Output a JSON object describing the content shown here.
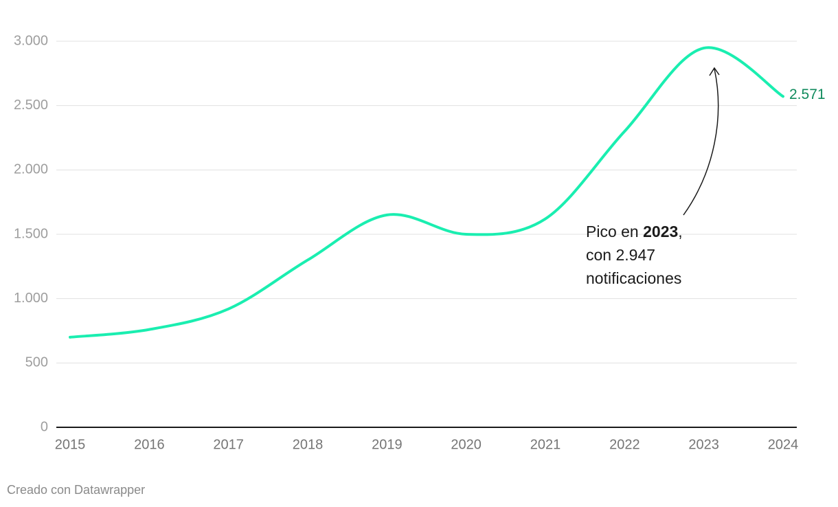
{
  "chart_data": {
    "type": "line",
    "x": [
      2015,
      2016,
      2017,
      2018,
      2019,
      2020,
      2021,
      2022,
      2023,
      2024
    ],
    "series": [
      {
        "color": "#1aeeb0",
        "label_color": "#0f8a5c",
        "values": [
          700,
          760,
          920,
          1300,
          1650,
          1500,
          1620,
          2300,
          2947,
          2571
        ],
        "value_labels": [
          null,
          null,
          null,
          null,
          null,
          null,
          null,
          null,
          null,
          "2.571"
        ]
      }
    ],
    "xlim": [
      2015,
      2024
    ],
    "xticks": [
      2015,
      2016,
      2017,
      2018,
      2019,
      2020,
      2021,
      2022,
      2023,
      2024
    ],
    "ylim": [
      0,
      3000
    ],
    "yticks": [
      0,
      500,
      {
        "value": 1000,
        "label": "1.000"
      },
      {
        "value": 1500,
        "label": "1.500"
      },
      {
        "value": 2000,
        "label": "2.000"
      },
      {
        "value": 2500,
        "label": "2.500"
      },
      {
        "value": 3000,
        "label": "3.000"
      }
    ],
    "grid": true,
    "annotation": {
      "lines": [
        [
          "Pico en ",
          "2023",
          ","
        ],
        [
          "con 2.947"
        ],
        [
          "notificaciones"
        ]
      ]
    },
    "source": "Creado con Datawrapper"
  }
}
